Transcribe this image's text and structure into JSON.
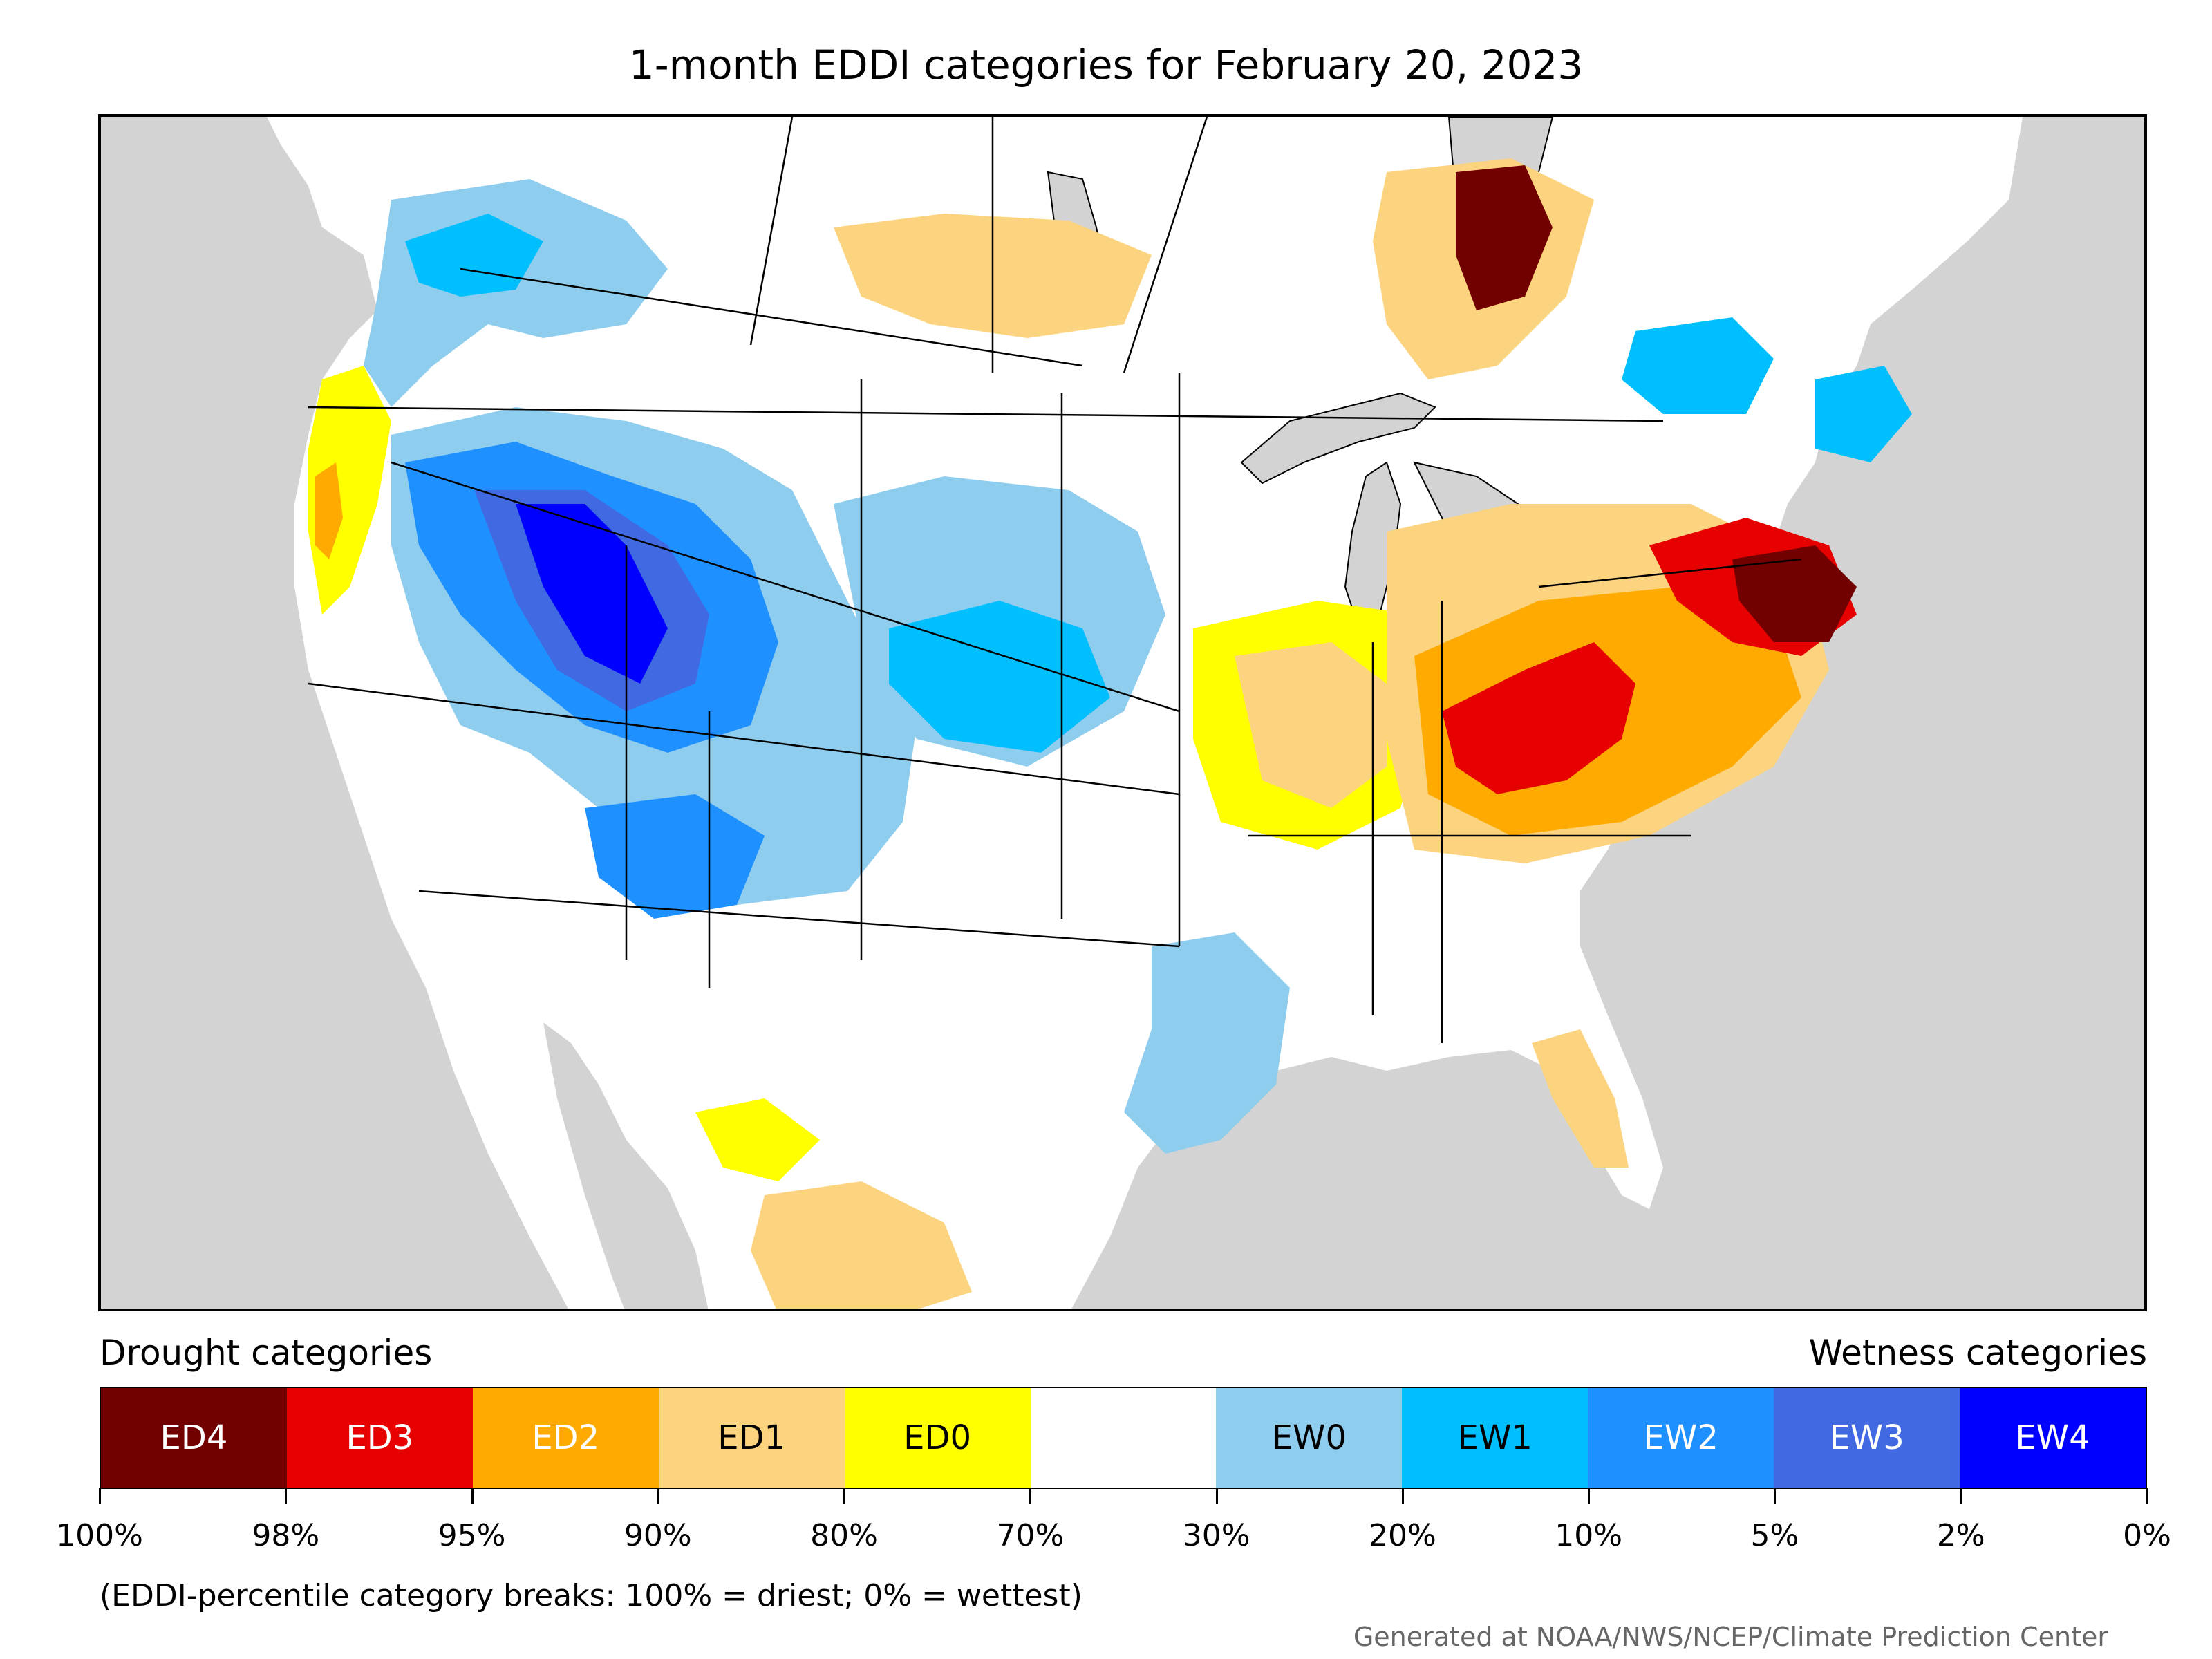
{
  "title": "1-month EDDI categories for February 20, 2023",
  "legend": {
    "left_title": "Drought categories",
    "right_title": "Wetness categories",
    "categories": [
      {
        "label": "ED4",
        "color": "#730000",
        "text_color": "#ffffff"
      },
      {
        "label": "ED3",
        "color": "#e60000",
        "text_color": "#ffffff"
      },
      {
        "label": "ED2",
        "color": "#ffaa00",
        "text_color": "#ffffff"
      },
      {
        "label": "ED1",
        "color": "#fcd37f",
        "text_color": "#000000"
      },
      {
        "label": "ED0",
        "color": "#ffff00",
        "text_color": "#000000"
      },
      {
        "label": "",
        "color": "#ffffff",
        "text_color": "#000000"
      },
      {
        "label": "EW0",
        "color": "#8ecdee",
        "text_color": "#000000"
      },
      {
        "label": "EW1",
        "color": "#00bfff",
        "text_color": "#000000"
      },
      {
        "label": "EW2",
        "color": "#1e90ff",
        "text_color": "#ffffff"
      },
      {
        "label": "EW3",
        "color": "#4169e1",
        "text_color": "#ffffff"
      },
      {
        "label": "EW4",
        "color": "#0000ff",
        "text_color": "#ffffff"
      }
    ],
    "tick_labels": [
      "100%",
      "98%",
      "95%",
      "90%",
      "80%",
      "70%",
      "30%",
      "20%",
      "10%",
      "5%",
      "2%",
      "0%"
    ]
  },
  "note": "(EDDI-percentile category breaks: 100% = driest; 0% = wettest)",
  "credit": "Generated at NOAA/NWS/NCEP/Climate Prediction Center",
  "map": {
    "background_color": "#d3d3d3",
    "land_color": "#ffffff",
    "border_color": "#000000"
  }
}
